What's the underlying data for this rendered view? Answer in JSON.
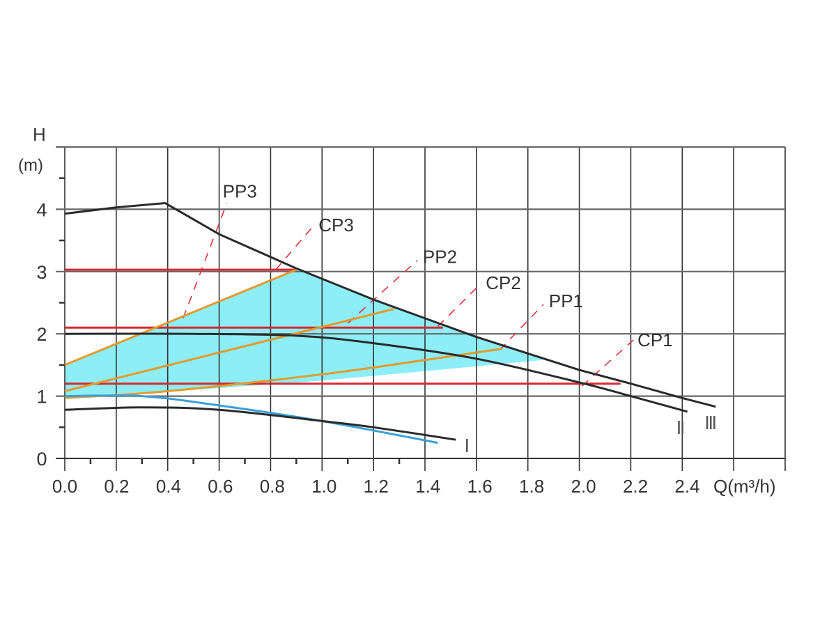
{
  "chart_data": {
    "type": "line",
    "title": "",
    "xlabel": "Q(m³/h)",
    "ylabel": "H",
    "ylabel_unit": "(m)",
    "xlim": [
      0,
      2.8
    ],
    "ylim": [
      0,
      5
    ],
    "grid": true,
    "x_ticks": [
      "0.0",
      "0.2",
      "0.4",
      "0.6",
      "0.8",
      "1.0",
      "1.2",
      "1.4",
      "1.6",
      "1.8",
      "2.0",
      "2.2",
      "2.4"
    ],
    "y_ticks": [
      "0",
      "1",
      "2",
      "3",
      "4"
    ],
    "colors": {
      "pump_curve": "#2a2a2a",
      "blue_curve": "#3aa0d8",
      "constant_pressure": "#d7282f",
      "proportional_pressure": "#e39a2b",
      "control_lines": "#e0303a",
      "fill": "#8eeef8"
    },
    "pump_curves": [
      {
        "name": "Ⅲ",
        "points": [
          [
            0,
            3.93
          ],
          [
            0.2,
            4.03
          ],
          [
            0.39,
            4.1
          ],
          [
            0.6,
            3.6
          ],
          [
            0.9,
            3.05
          ],
          [
            1.2,
            2.55
          ],
          [
            1.6,
            1.95
          ],
          [
            2.0,
            1.42
          ],
          [
            2.2,
            1.2
          ],
          [
            2.4,
            0.97
          ],
          [
            2.53,
            0.83
          ]
        ]
      },
      {
        "name": "Ⅱ",
        "points": [
          [
            0,
            2.0
          ],
          [
            0.5,
            2.0
          ],
          [
            0.9,
            1.97
          ],
          [
            1.2,
            1.85
          ],
          [
            1.6,
            1.6
          ],
          [
            2.0,
            1.22
          ],
          [
            2.2,
            1.0
          ],
          [
            2.42,
            0.75
          ]
        ]
      },
      {
        "name": "Ⅰ",
        "points": [
          [
            0,
            0.78
          ],
          [
            0.3,
            0.82
          ],
          [
            0.6,
            0.78
          ],
          [
            1.0,
            0.6
          ],
          [
            1.2,
            0.5
          ],
          [
            1.52,
            0.3
          ]
        ]
      }
    ],
    "blue_curve": [
      [
        0,
        1.0
      ],
      [
        0.3,
        1.0
      ],
      [
        0.6,
        0.85
      ],
      [
        1.0,
        0.6
      ],
      [
        1.45,
        0.25
      ]
    ],
    "constant_pressure": [
      {
        "name": "CP3",
        "y": 3.03,
        "x_end": 0.9,
        "dash": [
          [
            0.82,
            3.03
          ],
          [
            0.97,
            3.75
          ]
        ]
      },
      {
        "name": "CP2",
        "y": 2.1,
        "x_end": 1.47,
        "dash": [
          [
            1.45,
            2.12
          ],
          [
            1.62,
            2.82
          ]
        ]
      },
      {
        "name": "CP1",
        "y": 1.2,
        "x_end": 2.16,
        "dash": [
          [
            2.01,
            1.16
          ],
          [
            2.21,
            1.9
          ]
        ]
      }
    ],
    "proportional_pressure": [
      {
        "name": "PP3",
        "points": [
          [
            0,
            1.5
          ],
          [
            0.9,
            3.03
          ]
        ],
        "dash": [
          [
            0.46,
            2.25
          ],
          [
            0.63,
            4.1
          ]
        ]
      },
      {
        "name": "PP2",
        "points": [
          [
            0,
            1.08
          ],
          [
            1.28,
            2.4
          ]
        ],
        "dash": [
          [
            1.1,
            2.17
          ],
          [
            1.37,
            3.18
          ]
        ]
      },
      {
        "name": "PP1",
        "points": [
          [
            0,
            0.97
          ],
          [
            0.4,
            1.08
          ],
          [
            1.0,
            1.35
          ],
          [
            1.4,
            1.58
          ],
          [
            1.7,
            1.76
          ]
        ],
        "dash": [
          [
            1.69,
            1.74
          ],
          [
            1.86,
            2.47
          ]
        ]
      }
    ],
    "operating_area": [
      [
        0,
        1.5
      ],
      [
        0.9,
        3.03
      ],
      [
        1.2,
        2.55
      ],
      [
        1.6,
        1.95
      ],
      [
        1.8,
        1.68
      ],
      [
        1.86,
        1.58
      ],
      [
        1.4,
        1.4
      ],
      [
        1.0,
        1.25
      ],
      [
        0.5,
        1.1
      ],
      [
        0,
        1.0
      ]
    ]
  }
}
